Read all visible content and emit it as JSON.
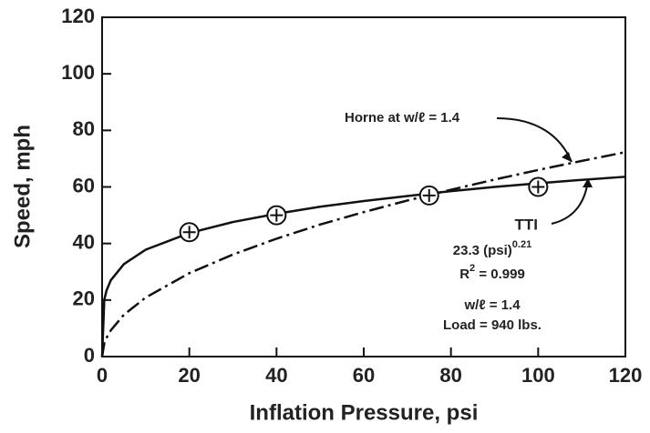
{
  "chart_data": {
    "type": "line",
    "xlabel": "Inflation Pressure, psi",
    "ylabel": "Speed, mph",
    "xlim": [
      0,
      120
    ],
    "xticks": [
      0,
      20,
      40,
      60,
      80,
      100,
      120
    ],
    "ylim": [
      0,
      120
    ],
    "yticks": [
      0,
      20,
      40,
      60,
      80,
      100,
      120
    ],
    "series": [
      {
        "style": "solid",
        "color": "#111",
        "x": [
          0,
          0.5,
          1,
          2,
          5,
          10,
          20,
          30,
          40,
          50,
          60,
          70,
          80,
          90,
          100,
          110,
          120
        ],
        "values": [
          0,
          20.1,
          23.3,
          27.0,
          32.7,
          37.8,
          43.7,
          47.6,
          50.5,
          53.0,
          55.0,
          56.8,
          58.5,
          60.0,
          61.3,
          62.5,
          63.6
        ]
      },
      {
        "style": "dashdot",
        "color": "#111",
        "x": [
          0,
          0.5,
          1,
          2,
          5,
          10,
          20,
          30,
          40,
          50,
          60,
          70,
          80,
          90,
          100,
          110,
          120
        ],
        "values": [
          0,
          4.7,
          6.6,
          9.3,
          14.8,
          20.9,
          29.5,
          36.1,
          41.7,
          46.7,
          51.1,
          55.2,
          59.0,
          62.6,
          66.0,
          69.2,
          72.3
        ]
      },
      {
        "style": "markers",
        "color": "#111",
        "x": [
          20,
          40,
          75,
          100
        ],
        "values": [
          44,
          50,
          57,
          60
        ]
      }
    ],
    "annotations": [
      {
        "text": "Horne at w/ℓ = 1.4"
      },
      {
        "text": "TTI"
      },
      {
        "text": "23.3 (psi)",
        "sup": "0.21"
      },
      {
        "text": "R",
        "sup": "2",
        "rest": " = 0.999"
      },
      {
        "text": "w/ℓ = 1.4"
      },
      {
        "text": "Load = 940 lbs."
      }
    ]
  }
}
